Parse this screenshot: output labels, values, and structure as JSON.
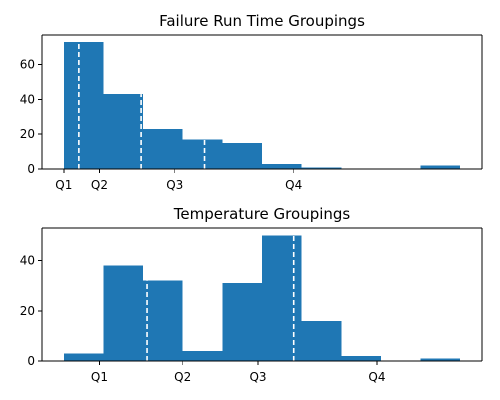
{
  "colors": {
    "bar": "#1f77b4",
    "quartile_line": "#ffffff",
    "background": "#ffffff",
    "axis": "#000000"
  },
  "chart_data": [
    {
      "type": "bar",
      "title": "Failure Run Time Groupings",
      "bins": [
        {
          "start": 0,
          "end": 1,
          "count": 73
        },
        {
          "start": 1,
          "end": 2,
          "count": 43
        },
        {
          "start": 2,
          "end": 3,
          "count": 23
        },
        {
          "start": 3,
          "end": 4,
          "count": 17
        },
        {
          "start": 4,
          "end": 5,
          "count": 15
        },
        {
          "start": 5,
          "end": 6,
          "count": 3
        },
        {
          "start": 6,
          "end": 7,
          "count": 1
        },
        {
          "start": 7,
          "end": 8,
          "count": 0
        },
        {
          "start": 8,
          "end": 9,
          "count": 0
        },
        {
          "start": 9,
          "end": 10,
          "count": 2
        }
      ],
      "xlim": [
        -0.55,
        10.55
      ],
      "ylim": [
        0,
        77
      ],
      "yticks": [
        0,
        20,
        40,
        60
      ],
      "xtick_labels": [
        {
          "label": "Q1",
          "x": 0
        },
        {
          "label": "Q2",
          "x": 0.9
        },
        {
          "label": "Q3",
          "x": 2.8
        },
        {
          "label": "Q4",
          "x": 5.8
        }
      ],
      "quartile_lines": [
        0.38,
        1.95,
        3.55
      ],
      "grid": false
    },
    {
      "type": "bar",
      "title": "Temperature Groupings",
      "bins": [
        {
          "start": 0,
          "end": 1,
          "count": 3
        },
        {
          "start": 1,
          "end": 2,
          "count": 38
        },
        {
          "start": 2,
          "end": 3,
          "count": 32
        },
        {
          "start": 3,
          "end": 4,
          "count": 4
        },
        {
          "start": 4,
          "end": 5,
          "count": 31
        },
        {
          "start": 5,
          "end": 6,
          "count": 50
        },
        {
          "start": 6,
          "end": 7,
          "count": 16
        },
        {
          "start": 7,
          "end": 8,
          "count": 2
        },
        {
          "start": 8,
          "end": 9,
          "count": 0
        },
        {
          "start": 9,
          "end": 10,
          "count": 1
        }
      ],
      "xlim": [
        -0.55,
        10.55
      ],
      "ylim": [
        0,
        53
      ],
      "yticks": [
        0,
        20,
        40
      ],
      "xtick_labels": [
        {
          "label": "Q1",
          "x": 0.9
        },
        {
          "label": "Q2",
          "x": 3.0
        },
        {
          "label": "Q3",
          "x": 4.9
        },
        {
          "label": "Q4",
          "x": 7.9
        }
      ],
      "quartile_lines": [
        2.1,
        5.8
      ],
      "grid": false
    }
  ]
}
